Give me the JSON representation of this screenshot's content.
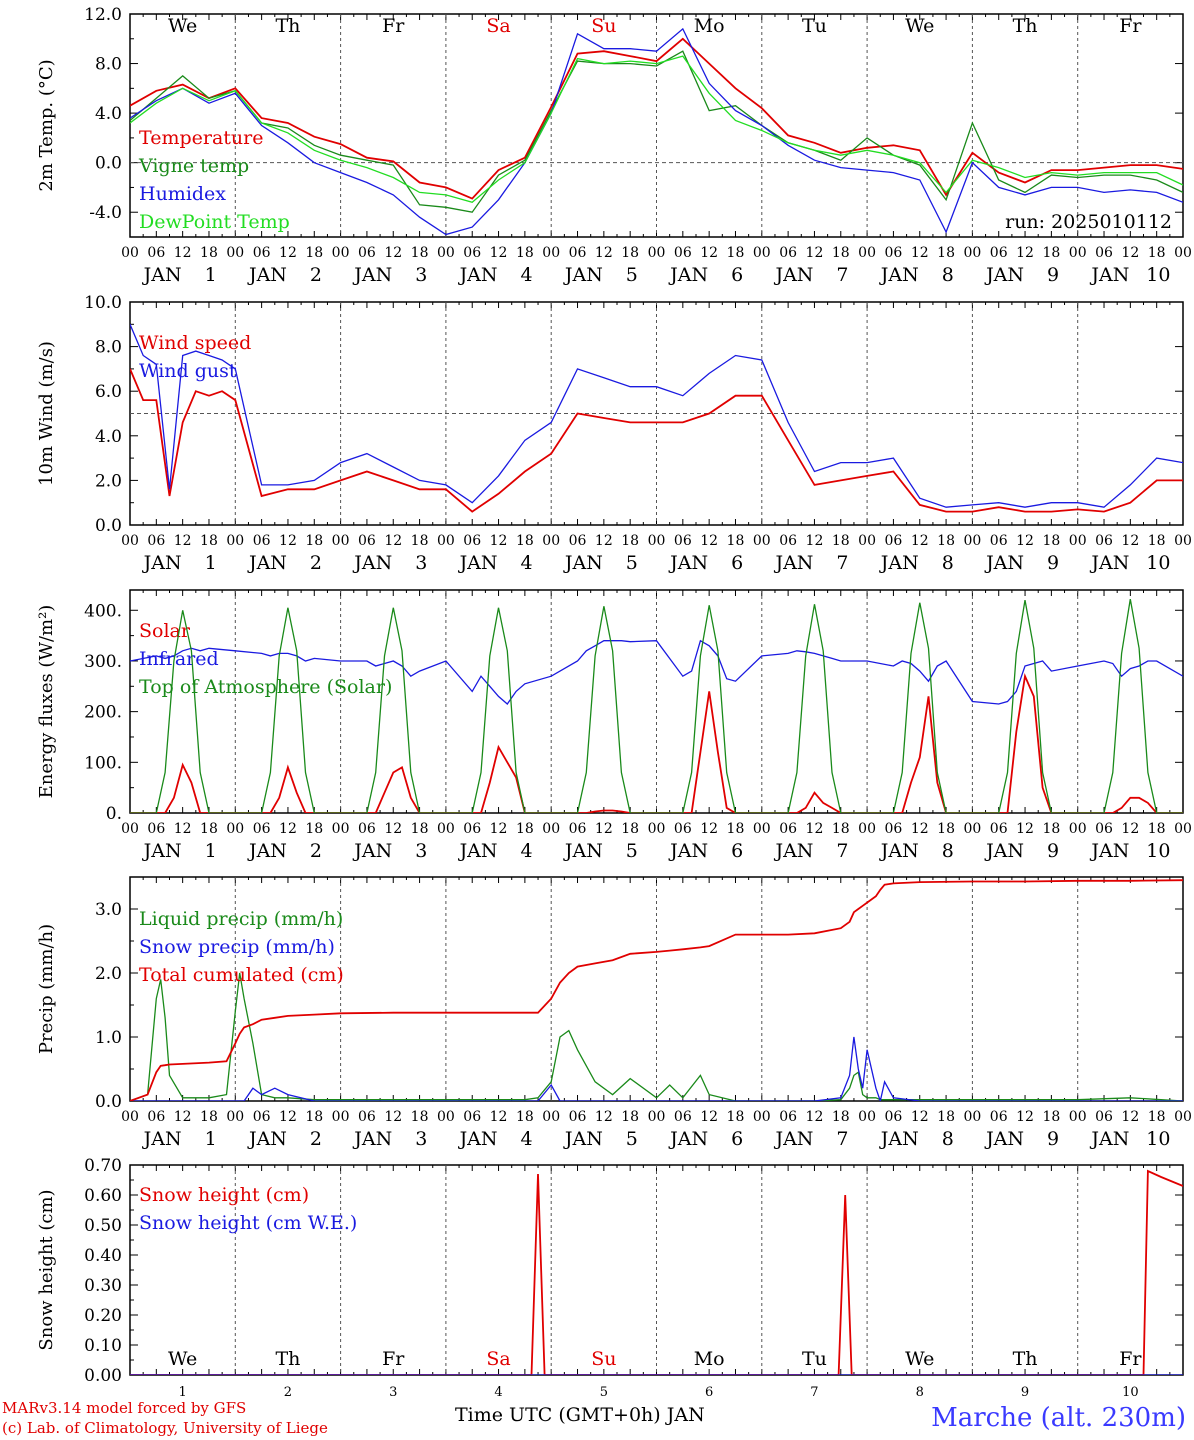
{
  "footer": {
    "model": "MARv3.14 model forced by GFS",
    "lab": "(c) Lab. of Climatology, University of Liege",
    "station": "Marche (alt. 230m)",
    "xtitle": "Time UTC (GMT+0h) JAN"
  },
  "colors": {
    "red": "#e00000",
    "green": "#1a8a1a",
    "blue": "#1a1ae0",
    "lightgreen": "#22dd22",
    "axis": "#000000",
    "grid": "#555555"
  },
  "day_names": [
    "We",
    "Th",
    "Fr",
    "Sa",
    "Su",
    "Mo",
    "Tu",
    "We",
    "Th",
    "Fr"
  ],
  "weekend_days": [
    "Sa",
    "Su"
  ],
  "day_numbers": [
    "1",
    "2",
    "3",
    "4",
    "5",
    "6",
    "7",
    "8",
    "9",
    "10"
  ],
  "month": "JAN",
  "hour_ticks": [
    "00",
    "06",
    "12",
    "18"
  ],
  "final_hour": "00",
  "run_label": "run: 2025010112",
  "chart_data": [
    {
      "type": "line",
      "ylabel": "2m Temp. (°C)",
      "ylim": [
        -6,
        12
      ],
      "yticks": [
        "-4.0",
        "0.0",
        "4.0",
        "8.0",
        "12.0"
      ],
      "yticks_values": [
        -4,
        0,
        4,
        8,
        12
      ],
      "refline": 0,
      "x_hours": [
        0,
        6,
        12,
        18,
        24,
        30,
        36,
        42,
        48,
        54,
        60,
        66,
        72,
        78,
        84,
        90,
        96,
        102,
        108,
        114,
        120,
        126,
        132,
        138,
        144,
        150,
        156,
        162,
        168,
        174,
        180,
        186,
        192,
        198,
        204,
        210,
        216,
        222,
        228,
        234,
        240
      ],
      "series": [
        {
          "name": "Temperature",
          "color": "red",
          "values": [
            4.6,
            5.8,
            6.3,
            5.2,
            6.0,
            3.6,
            3.2,
            2.1,
            1.5,
            0.4,
            0.1,
            -1.6,
            -2.0,
            -2.9,
            -0.6,
            0.4,
            4.5,
            8.8,
            9.0,
            8.6,
            8.2,
            10.0,
            8.0,
            6.0,
            4.4,
            2.2,
            1.6,
            0.8,
            1.2,
            1.4,
            1.0,
            -2.6,
            0.8,
            -0.8,
            -1.6,
            -0.6,
            -0.6,
            -0.4,
            -0.2,
            -0.2,
            -0.5
          ]
        },
        {
          "name": "Vigne temp",
          "color": "green",
          "values": [
            3.4,
            5.2,
            7.0,
            5.2,
            5.8,
            3.2,
            2.8,
            1.4,
            0.6,
            0.2,
            -0.2,
            -3.4,
            -3.6,
            -4.0,
            -1.0,
            0.2,
            4.2,
            8.2,
            8.0,
            8.0,
            7.8,
            9.0,
            4.2,
            4.6,
            3.0,
            1.6,
            1.0,
            0.2,
            2.0,
            0.6,
            -0.2,
            -3.0,
            3.2,
            -1.4,
            -2.4,
            -1.0,
            -1.2,
            -1.0,
            -1.0,
            -1.4,
            -2.4
          ]
        },
        {
          "name": "Humidex",
          "color": "blue",
          "values": [
            3.6,
            5.0,
            6.0,
            4.8,
            5.6,
            3.0,
            1.6,
            0.0,
            -0.8,
            -1.6,
            -2.6,
            -4.4,
            -5.8,
            -5.2,
            -3.0,
            0.0,
            4.0,
            10.4,
            9.2,
            9.2,
            9.0,
            10.8,
            6.4,
            4.2,
            3.0,
            1.4,
            0.2,
            -0.4,
            -0.6,
            -0.8,
            -1.4,
            -5.6,
            0.0,
            -2.0,
            -2.6,
            -2.0,
            -2.0,
            -2.4,
            -2.2,
            -2.4,
            -3.2
          ]
        },
        {
          "name": "DewPoint Temp",
          "color": "lightgreen",
          "values": [
            3.2,
            4.8,
            6.0,
            5.0,
            5.8,
            3.2,
            2.4,
            1.0,
            0.2,
            -0.4,
            -1.2,
            -2.4,
            -2.6,
            -3.2,
            -1.4,
            0.0,
            4.0,
            8.4,
            8.0,
            8.2,
            8.0,
            8.6,
            5.6,
            3.4,
            2.6,
            1.6,
            1.0,
            0.6,
            1.0,
            0.6,
            0.0,
            -2.4,
            0.2,
            -0.4,
            -1.2,
            -0.8,
            -1.0,
            -0.8,
            -0.8,
            -0.8,
            -1.8
          ]
        }
      ]
    },
    {
      "type": "line",
      "ylabel": "10m Wind (m/s)",
      "ylim": [
        0,
        10
      ],
      "yticks": [
        "0.0",
        "2.0",
        "4.0",
        "6.0",
        "8.0",
        "10.0"
      ],
      "yticks_values": [
        0,
        2,
        4,
        6,
        8,
        10
      ],
      "refline": 5,
      "x_hours": [
        0,
        3,
        6,
        9,
        12,
        15,
        18,
        21,
        24,
        30,
        36,
        42,
        48,
        54,
        60,
        66,
        72,
        78,
        84,
        90,
        96,
        102,
        108,
        114,
        120,
        126,
        132,
        138,
        144,
        150,
        156,
        162,
        168,
        174,
        180,
        186,
        192,
        198,
        204,
        210,
        216,
        222,
        228,
        234,
        240
      ],
      "series": [
        {
          "name": "Wind speed",
          "color": "red",
          "values": [
            7.0,
            5.6,
            5.6,
            1.3,
            4.6,
            6.0,
            5.8,
            6.0,
            5.6,
            1.3,
            1.6,
            1.6,
            2.0,
            2.4,
            2.0,
            1.6,
            1.6,
            0.6,
            1.4,
            2.4,
            3.2,
            5.0,
            4.8,
            4.6,
            4.6,
            4.6,
            5.0,
            5.8,
            5.8,
            3.8,
            1.8,
            2.0,
            2.2,
            2.4,
            0.9,
            0.6,
            0.6,
            0.8,
            0.6,
            0.6,
            0.7,
            0.6,
            1.0,
            2.0,
            2.0
          ]
        },
        {
          "name": "Wind gust",
          "color": "blue",
          "values": [
            9.0,
            7.6,
            7.2,
            1.6,
            7.6,
            7.8,
            7.6,
            7.4,
            7.0,
            1.8,
            1.8,
            2.0,
            2.8,
            3.2,
            2.6,
            2.0,
            1.8,
            1.0,
            2.2,
            3.8,
            4.6,
            7.0,
            6.6,
            6.2,
            6.2,
            5.8,
            6.8,
            7.6,
            7.4,
            4.6,
            2.4,
            2.8,
            2.8,
            3.0,
            1.2,
            0.8,
            0.9,
            1.0,
            0.8,
            1.0,
            1.0,
            0.8,
            1.8,
            3.0,
            2.8
          ]
        }
      ]
    },
    {
      "type": "line",
      "ylabel": "Energy fluxes (W/m²)",
      "ylim": [
        0,
        440
      ],
      "yticks": [
        "0.",
        "100.",
        "200.",
        "300.",
        "400."
      ],
      "yticks_values": [
        0,
        100,
        200,
        300,
        400
      ],
      "refline": null,
      "x_hours": [
        0,
        6,
        8,
        10,
        12,
        14,
        16,
        18,
        24,
        30,
        32,
        34,
        36,
        38,
        40,
        42,
        48,
        54,
        56,
        58,
        60,
        62,
        64,
        66,
        72,
        78,
        80,
        82,
        84,
        86,
        88,
        90,
        96,
        102,
        104,
        106,
        108,
        110,
        112,
        114,
        120,
        126,
        128,
        130,
        132,
        134,
        136,
        138,
        144,
        150,
        152,
        154,
        156,
        158,
        160,
        162,
        168,
        174,
        176,
        178,
        180,
        182,
        184,
        186,
        192,
        198,
        200,
        202,
        204,
        206,
        208,
        210,
        216,
        222,
        224,
        226,
        228,
        230,
        232,
        234,
        240
      ],
      "series": [
        {
          "name": "Solar",
          "color": "red",
          "values": [
            0,
            0,
            0,
            30,
            95,
            60,
            0,
            0,
            0,
            0,
            0,
            30,
            90,
            40,
            0,
            0,
            0,
            0,
            0,
            40,
            80,
            90,
            30,
            0,
            0,
            0,
            0,
            60,
            130,
            100,
            70,
            0,
            0,
            0,
            0,
            3,
            5,
            5,
            3,
            0,
            0,
            0,
            0,
            120,
            240,
            120,
            10,
            0,
            0,
            0,
            0,
            10,
            40,
            20,
            10,
            0,
            0,
            0,
            0,
            60,
            110,
            230,
            60,
            0,
            0,
            0,
            0,
            160,
            270,
            230,
            50,
            0,
            0,
            0,
            0,
            10,
            30,
            30,
            20,
            0,
            0
          ]
        },
        {
          "name": "Infrared",
          "color": "blue",
          "values": [
            300,
            310,
            305,
            310,
            320,
            325,
            320,
            325,
            320,
            315,
            310,
            315,
            315,
            310,
            300,
            305,
            300,
            300,
            290,
            295,
            300,
            290,
            270,
            280,
            300,
            240,
            270,
            250,
            230,
            215,
            240,
            255,
            270,
            300,
            320,
            330,
            340,
            340,
            340,
            338,
            340,
            270,
            280,
            340,
            330,
            310,
            265,
            260,
            310,
            315,
            320,
            318,
            315,
            310,
            305,
            300,
            300,
            290,
            300,
            295,
            280,
            260,
            290,
            300,
            220,
            215,
            220,
            240,
            290,
            295,
            300,
            280,
            290,
            300,
            295,
            270,
            285,
            290,
            300,
            300,
            270
          ]
        },
        {
          "name": "Top of Atmosphere (Solar)",
          "color": "green",
          "values": [
            0,
            0,
            80,
            300,
            400,
            320,
            80,
            0,
            0,
            0,
            80,
            310,
            405,
            320,
            80,
            0,
            0,
            0,
            80,
            310,
            405,
            320,
            80,
            0,
            0,
            0,
            80,
            310,
            405,
            320,
            80,
            0,
            0,
            0,
            80,
            310,
            408,
            320,
            80,
            0,
            0,
            0,
            80,
            310,
            410,
            320,
            80,
            0,
            0,
            0,
            80,
            310,
            412,
            320,
            80,
            0,
            0,
            0,
            80,
            315,
            415,
            325,
            80,
            0,
            0,
            0,
            80,
            315,
            420,
            325,
            80,
            0,
            0,
            0,
            80,
            315,
            422,
            325,
            80,
            0,
            0
          ]
        }
      ]
    },
    {
      "type": "line",
      "ylabel": "Precip (mm/h)",
      "ylim": [
        0,
        3.5
      ],
      "yticks": [
        "0.0",
        "1.0",
        "2.0",
        "3.0"
      ],
      "yticks_values": [
        0,
        1,
        2,
        3
      ],
      "refline": null,
      "x_hours": [
        0,
        4,
        6,
        7,
        8,
        9,
        12,
        18,
        22,
        24,
        25,
        26,
        28,
        30,
        33,
        36,
        42,
        48,
        60,
        72,
        84,
        90,
        93,
        96,
        98,
        100,
        102,
        106,
        110,
        114,
        120,
        123,
        126,
        130,
        132,
        138,
        144,
        150,
        156,
        162,
        164,
        165,
        166,
        167,
        168,
        170,
        171,
        172,
        174,
        180,
        192,
        204,
        216,
        228,
        240
      ],
      "series": [
        {
          "name": "Liquid precip (mm/h)",
          "color": "green",
          "values": [
            0,
            0.1,
            1.6,
            1.9,
            1.3,
            0.4,
            0.05,
            0.05,
            0.1,
            1.4,
            2.0,
            1.6,
            0.9,
            0.1,
            0.05,
            0.05,
            0.02,
            0.02,
            0.02,
            0.02,
            0.02,
            0.02,
            0.05,
            0.3,
            1.0,
            1.1,
            0.8,
            0.3,
            0.1,
            0.35,
            0.05,
            0.25,
            0.05,
            0.4,
            0.1,
            0,
            0,
            0,
            0,
            0.02,
            0.2,
            0.4,
            0.45,
            0.1,
            0.05,
            0.05,
            0.02,
            0.02,
            0.02,
            0.02,
            0.02,
            0.02,
            0.02,
            0.05,
            0
          ]
        },
        {
          "name": "Snow precip (mm/h)",
          "color": "blue",
          "values": [
            0,
            0,
            0,
            0,
            0,
            0,
            0,
            0,
            0,
            0,
            0,
            0,
            0.2,
            0.1,
            0.2,
            0.1,
            0,
            0,
            0,
            0,
            0,
            0,
            0,
            0.25,
            0,
            0,
            0,
            0,
            0,
            0,
            0,
            0,
            0,
            0,
            0,
            0,
            0,
            0,
            0,
            0.05,
            0.4,
            1.0,
            0.5,
            0.2,
            0.8,
            0.2,
            0,
            0.3,
            0.05,
            0,
            0,
            0,
            0,
            0,
            0
          ]
        },
        {
          "name": "Total cumulated (cm)",
          "color": "red",
          "values": [
            0,
            0.1,
            0.45,
            0.55,
            0.56,
            0.57,
            0.58,
            0.6,
            0.62,
            0.9,
            1.05,
            1.15,
            1.2,
            1.27,
            1.3,
            1.33,
            1.35,
            1.37,
            1.38,
            1.38,
            1.38,
            1.38,
            1.38,
            1.6,
            1.85,
            2.0,
            2.1,
            2.15,
            2.2,
            2.3,
            2.33,
            2.35,
            2.37,
            2.4,
            2.42,
            2.6,
            2.6,
            2.6,
            2.62,
            2.7,
            2.8,
            2.95,
            3.0,
            3.05,
            3.1,
            3.2,
            3.3,
            3.38,
            3.4,
            3.42,
            3.43,
            3.43,
            3.44,
            3.44,
            3.45
          ]
        }
      ]
    },
    {
      "type": "line",
      "ylabel": "Snow height (cm)",
      "ylim": [
        0,
        0.7
      ],
      "yticks": [
        "0.00",
        "0.10",
        "0.20",
        "0.30",
        "0.40",
        "0.50",
        "0.60",
        "0.70"
      ],
      "yticks_values": [
        0,
        0.1,
        0.2,
        0.3,
        0.4,
        0.5,
        0.6,
        0.7
      ],
      "refline": null,
      "x_hours": [
        0,
        90,
        91.5,
        93,
        94.5,
        150,
        160,
        161.5,
        163,
        164.5,
        230,
        231,
        232,
        235,
        240
      ],
      "series": [
        {
          "name": "Snow height (cm)",
          "color": "red",
          "values": [
            0,
            0,
            0,
            0.67,
            0,
            0,
            0,
            0,
            0.6,
            0,
            0,
            0,
            0.68,
            0.66,
            0.63
          ]
        },
        {
          "name": "Snow height (cm W.E.)",
          "color": "blue",
          "values": [
            0,
            0,
            0,
            0,
            0,
            0,
            0,
            0,
            0,
            0,
            0,
            0,
            0,
            0,
            0
          ]
        }
      ]
    }
  ]
}
